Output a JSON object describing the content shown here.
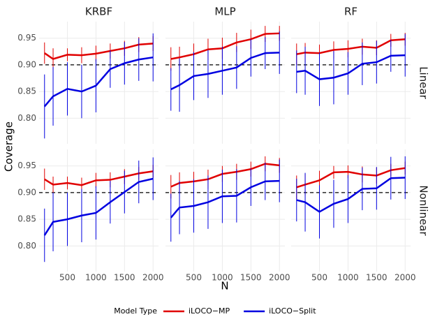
{
  "chart_data": {
    "type": "line",
    "xlabel": "N",
    "ylabel": "Coverage",
    "legend_title": "Model Type",
    "column_labels": [
      "KRBF",
      "MLP",
      "RF"
    ],
    "row_labels": [
      "Linear",
      "Nonlinear"
    ],
    "x": [
      100,
      250,
      500,
      750,
      1000,
      1250,
      1500,
      1750,
      2000
    ],
    "xlim": [
      5,
      2095
    ],
    "xticks": [
      500,
      1000,
      1500,
      2000
    ],
    "ylim": [
      0.752,
      0.981
    ],
    "yticks": [
      {
        "value": 0.8,
        "label": "0.80"
      },
      {
        "value": 0.85,
        "label": "0.85"
      },
      {
        "value": 0.9,
        "label": "0.90"
      },
      {
        "value": 0.95,
        "label": "0.95"
      }
    ],
    "reference_line": 0.9,
    "grid": true,
    "series": [
      {
        "name": "iLOCO−MP",
        "color": "#e00000"
      },
      {
        "name": "iLOCO−Split",
        "color": "#0000e0"
      }
    ],
    "panels": [
      {
        "series": [
          {
            "values": [
              0.922,
              0.911,
              0.919,
              0.918,
              0.921,
              0.926,
              0.931,
              0.938,
              0.94
            ],
            "errors": [
              0.02,
              0.02,
              0.012,
              0.015,
              0.015,
              0.014,
              0.014,
              0.014,
              0.014
            ]
          },
          {
            "values": [
              0.822,
              0.841,
              0.855,
              0.85,
              0.861,
              0.892,
              0.903,
              0.91,
              0.914
            ],
            "errors": [
              0.06,
              0.055,
              0.05,
              0.05,
              0.05,
              0.035,
              0.04,
              0.04,
              0.045
            ]
          }
        ]
      },
      {
        "series": [
          {
            "values": [
              0.911,
              0.914,
              0.92,
              0.929,
              0.931,
              0.942,
              0.948,
              0.958,
              0.959
            ],
            "errors": [
              0.022,
              0.02,
              0.02,
              0.02,
              0.02,
              0.018,
              0.018,
              0.015,
              0.014
            ]
          },
          {
            "values": [
              0.854,
              0.862,
              0.879,
              0.883,
              0.889,
              0.895,
              0.913,
              0.922,
              0.923
            ],
            "errors": [
              0.04,
              0.05,
              0.045,
              0.045,
              0.045,
              0.04,
              0.035,
              0.03,
              0.04
            ]
          }
        ]
      },
      {
        "series": [
          {
            "values": [
              0.92,
              0.923,
              0.922,
              0.928,
              0.93,
              0.934,
              0.932,
              0.946,
              0.948
            ],
            "errors": [
              0.02,
              0.018,
              0.016,
              0.016,
              0.016,
              0.015,
              0.014,
              0.012,
              0.012
            ]
          },
          {
            "values": [
              0.887,
              0.889,
              0.873,
              0.876,
              0.884,
              0.902,
              0.905,
              0.917,
              0.918
            ],
            "errors": [
              0.04,
              0.045,
              0.05,
              0.05,
              0.04,
              0.04,
              0.04,
              0.03,
              0.04
            ]
          }
        ]
      },
      {
        "series": [
          {
            "values": [
              0.925,
              0.915,
              0.918,
              0.914,
              0.923,
              0.924,
              0.93,
              0.936,
              0.94
            ],
            "errors": [
              0.02,
              0.015,
              0.012,
              0.014,
              0.014,
              0.014,
              0.014,
              0.012,
              0.012
            ]
          },
          {
            "values": [
              0.82,
              0.845,
              0.85,
              0.857,
              0.862,
              0.882,
              0.901,
              0.92,
              0.926
            ],
            "errors": [
              0.05,
              0.055,
              0.05,
              0.05,
              0.05,
              0.04,
              0.04,
              0.04,
              0.04
            ]
          }
        ]
      },
      {
        "series": [
          {
            "values": [
              0.911,
              0.918,
              0.921,
              0.925,
              0.935,
              0.939,
              0.944,
              0.954,
              0.951
            ],
            "errors": [
              0.022,
              0.02,
              0.018,
              0.018,
              0.015,
              0.015,
              0.014,
              0.014,
              0.014
            ]
          },
          {
            "values": [
              0.853,
              0.872,
              0.875,
              0.882,
              0.893,
              0.894,
              0.91,
              0.921,
              0.922
            ],
            "errors": [
              0.045,
              0.05,
              0.05,
              0.05,
              0.05,
              0.05,
              0.035,
              0.035,
              0.04
            ]
          }
        ]
      },
      {
        "series": [
          {
            "values": [
              0.91,
              0.915,
              0.923,
              0.938,
              0.939,
              0.934,
              0.932,
              0.942,
              0.946
            ],
            "errors": [
              0.022,
              0.02,
              0.018,
              0.012,
              0.012,
              0.015,
              0.015,
              0.012,
              0.012
            ]
          },
          {
            "values": [
              0.886,
              0.882,
              0.864,
              0.879,
              0.888,
              0.907,
              0.908,
              0.927,
              0.928
            ],
            "errors": [
              0.04,
              0.055,
              0.05,
              0.045,
              0.045,
              0.04,
              0.04,
              0.04,
              0.04
            ]
          }
        ]
      }
    ]
  }
}
